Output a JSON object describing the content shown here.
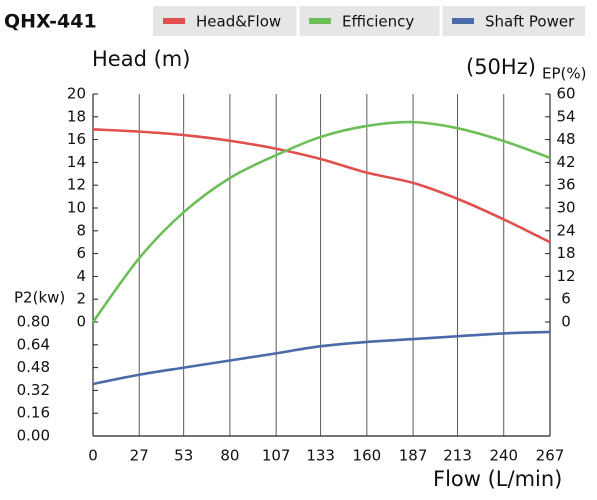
{
  "chart_data": {
    "type": "line",
    "title": "QHX-441",
    "subtitle": "(50Hz)",
    "y_label": "Head (m)",
    "y2_label": "EP(%)",
    "y3_label": "P2(kw)",
    "x_label": "Flow (L/min)",
    "x": [
      0,
      27,
      53,
      80,
      107,
      133,
      160,
      187,
      213,
      240,
      267
    ],
    "xlim": [
      0,
      267
    ],
    "xticks": [
      0,
      27,
      53,
      80,
      107,
      133,
      160,
      187,
      213,
      240,
      267
    ],
    "ylim": [
      0,
      20
    ],
    "yticks": [
      0,
      2,
      4,
      6,
      8,
      10,
      12,
      14,
      16,
      18,
      20
    ],
    "y2lim": [
      0,
      60
    ],
    "y2ticks": [
      0,
      6,
      12,
      18,
      24,
      30,
      36,
      42,
      48,
      54,
      60
    ],
    "y3lim": [
      0,
      0.8
    ],
    "y3ticks": [
      {
        "value": 0,
        "label": "0.00"
      },
      {
        "value": 0.16,
        "label": "0.16"
      },
      {
        "value": 0.32,
        "label": "0.32"
      },
      {
        "value": 0.48,
        "label": "0.48"
      },
      {
        "value": 0.64,
        "label": "0.64"
      },
      {
        "value": 0.8,
        "label": "0.80"
      }
    ],
    "grid": true,
    "series": [
      {
        "name": "Head&Flow",
        "color": "#e0504f",
        "axis": "y",
        "values": [
          16.9,
          16.7,
          16.4,
          15.9,
          15.2,
          14.3,
          13.1,
          12.2,
          10.8,
          9.0,
          7.0
        ]
      },
      {
        "name": "Efficiency",
        "color": "#6cbf58",
        "axis": "y2",
        "values": [
          0,
          16.8,
          28.9,
          37.9,
          43.9,
          48.7,
          51.6,
          52.6,
          51.0,
          47.6,
          43.2
        ]
      },
      {
        "name": "Shaft Power",
        "color": "#4a6aa8",
        "axis": "y3",
        "values": [
          0.365,
          0.43,
          0.48,
          0.53,
          0.58,
          0.63,
          0.66,
          0.68,
          0.7,
          0.72,
          0.73
        ]
      }
    ]
  }
}
